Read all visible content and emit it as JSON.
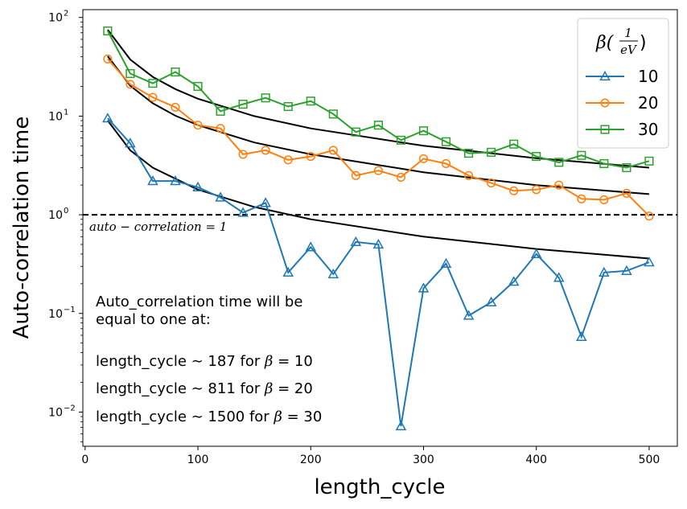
{
  "chart_data": {
    "type": "line",
    "xlabel": "length_cycle",
    "ylabel": "Auto-correlation time",
    "xlim": [
      -2,
      525
    ],
    "ylim": [
      0.0045,
      120
    ],
    "yscale": "log",
    "xticks": [
      0,
      100,
      200,
      300,
      400,
      500
    ],
    "xtick_labels": [
      "0",
      "100",
      "200",
      "300",
      "400",
      "500"
    ],
    "yticks": [
      0.01,
      0.1,
      1,
      10,
      100
    ],
    "ytick_labels": [
      {
        "base": "10",
        "exp": "−2"
      },
      {
        "base": "10",
        "exp": "−1"
      },
      {
        "base": "10",
        "exp": "0"
      },
      {
        "base": "10",
        "exp": "1"
      },
      {
        "base": "10",
        "exp": "2"
      }
    ],
    "x": [
      20,
      40,
      60,
      80,
      100,
      120,
      140,
      160,
      180,
      200,
      220,
      240,
      260,
      280,
      300,
      320,
      340,
      360,
      380,
      400,
      420,
      440,
      460,
      480,
      500
    ],
    "series": [
      {
        "name": "10",
        "color": "#1f77b4",
        "marker": "triangle",
        "values": [
          9.5,
          5.3,
          2.2,
          2.2,
          1.9,
          1.5,
          1.05,
          1.32,
          0.26,
          0.47,
          0.25,
          0.53,
          0.5,
          0.0072,
          0.18,
          0.32,
          0.095,
          0.13,
          0.21,
          0.4,
          0.23,
          0.058,
          0.26,
          0.27,
          0.33
        ]
      },
      {
        "name": "20",
        "color": "#ff7f0e",
        "marker": "circle",
        "values": [
          38,
          21,
          15.5,
          12.3,
          8.1,
          7.5,
          4.1,
          4.5,
          3.6,
          3.9,
          4.5,
          2.5,
          2.8,
          2.4,
          3.7,
          3.3,
          2.5,
          2.1,
          1.75,
          1.8,
          2.0,
          1.45,
          1.42,
          1.65,
          0.97
        ]
      },
      {
        "name": "30",
        "color": "#2ca02c",
        "marker": "square",
        "values": [
          73,
          27,
          21.5,
          28,
          20,
          11.2,
          13.2,
          15.3,
          12.5,
          14.2,
          10.5,
          6.9,
          8.1,
          5.7,
          7.1,
          5.5,
          4.2,
          4.3,
          5.2,
          3.9,
          3.4,
          4.0,
          3.3,
          3.0,
          3.5
        ]
      }
    ],
    "fits": [
      {
        "for": "10",
        "color": "#000000",
        "x": [
          20,
          40,
          60,
          100,
          150,
          200,
          300,
          400,
          500
        ],
        "values": [
          9.0,
          4.5,
          3.0,
          1.8,
          1.2,
          0.9,
          0.6,
          0.45,
          0.36
        ]
      },
      {
        "for": "20",
        "color": "#000000",
        "x": [
          20,
          40,
          60,
          80,
          100,
          150,
          200,
          300,
          400,
          500
        ],
        "values": [
          40.5,
          20.3,
          13.5,
          10.1,
          8.1,
          5.4,
          4.1,
          2.7,
          2.0,
          1.62
        ]
      },
      {
        "for": "30",
        "color": "#000000",
        "x": [
          20,
          40,
          60,
          80,
          100,
          150,
          200,
          300,
          400,
          500
        ],
        "values": [
          75,
          37.5,
          25,
          18.8,
          15,
          10,
          7.5,
          5.0,
          3.75,
          3.0
        ]
      }
    ],
    "hline": {
      "y": 1,
      "style": "dashed",
      "color": "#000000"
    },
    "hline_label": "auto − correlation = 1",
    "legend": {
      "position": "top-right",
      "title": "β(1/eV)",
      "entries": [
        "10",
        "20",
        "30"
      ]
    },
    "annotation": {
      "lines": [
        "Auto_correlation time will be",
        "equal to one at:"
      ],
      "results": [
        {
          "prefix": "length_cycle ∼ 187 for ",
          "var": "β",
          "rest": " = 10"
        },
        {
          "prefix": "length_cycle ∼ 811 for ",
          "var": "β",
          "rest": " = 20"
        },
        {
          "prefix": "length_cycle ∼ 1500 for ",
          "var": "β",
          "rest": " = 30"
        }
      ]
    },
    "grid": false
  }
}
